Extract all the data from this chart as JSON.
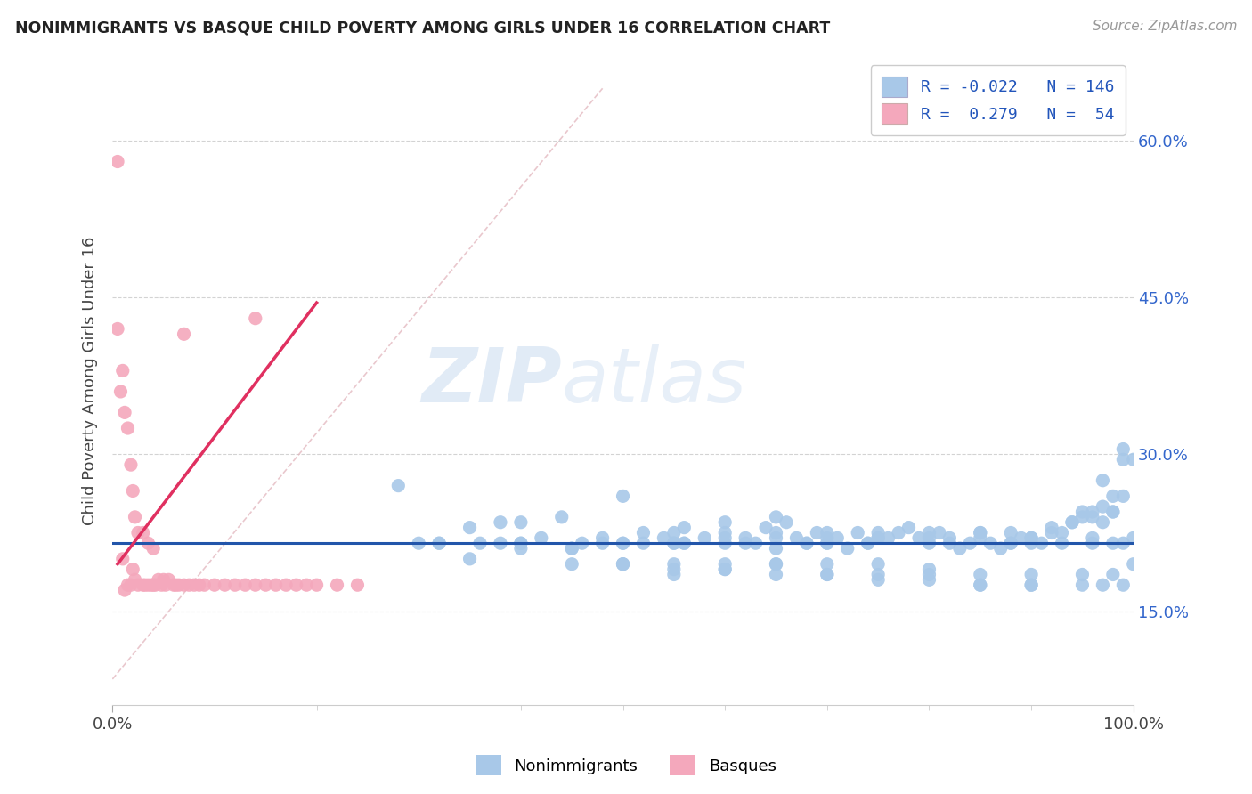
{
  "title": "NONIMMIGRANTS VS BASQUE CHILD POVERTY AMONG GIRLS UNDER 16 CORRELATION CHART",
  "source": "Source: ZipAtlas.com",
  "ylabel": "Child Poverty Among Girls Under 16",
  "watermark_zip": "ZIP",
  "watermark_atlas": "atlas",
  "legend_blue_label": "Nonimmigrants",
  "legend_pink_label": "Basques",
  "R_blue": -0.022,
  "N_blue": 146,
  "R_pink": 0.279,
  "N_pink": 54,
  "blue_dot_color": "#a8c8e8",
  "pink_dot_color": "#f4a8bc",
  "blue_line_color": "#2255aa",
  "pink_line_color": "#e03060",
  "diag_color": "#e0b0b8",
  "background_color": "#ffffff",
  "grid_color": "#c8c8c8",
  "y_ticks": [
    0.15,
    0.3,
    0.45,
    0.6
  ],
  "y_tick_labels": [
    "15.0%",
    "30.0%",
    "45.0%",
    "60.0%"
  ],
  "xlim": [
    0.0,
    1.0
  ],
  "ylim": [
    0.06,
    0.68
  ],
  "blue_scatter_x": [
    0.28,
    0.32,
    0.35,
    0.38,
    0.4,
    0.42,
    0.44,
    0.48,
    0.5,
    0.52,
    0.54,
    0.55,
    0.56,
    0.58,
    0.6,
    0.62,
    0.63,
    0.64,
    0.65,
    0.66,
    0.67,
    0.68,
    0.69,
    0.7,
    0.71,
    0.72,
    0.73,
    0.74,
    0.75,
    0.76,
    0.77,
    0.78,
    0.79,
    0.8,
    0.81,
    0.82,
    0.83,
    0.84,
    0.85,
    0.86,
    0.87,
    0.88,
    0.89,
    0.9,
    0.91,
    0.92,
    0.93,
    0.94,
    0.95,
    0.96,
    0.97,
    0.98,
    0.99,
    1.0,
    0.5,
    0.55,
    0.6,
    0.65,
    0.7,
    0.45,
    0.5,
    0.55,
    0.6,
    0.65,
    0.7,
    0.75,
    0.8,
    0.85,
    0.9,
    0.4,
    0.45,
    0.5,
    0.55,
    0.6,
    0.65,
    0.7,
    0.75,
    0.8,
    0.85,
    0.88,
    0.9,
    0.92,
    0.94,
    0.96,
    0.98,
    0.5,
    0.55,
    0.6,
    0.65,
    0.7,
    0.75,
    0.8,
    0.85,
    0.9,
    0.95,
    0.97,
    0.99,
    0.6,
    0.65,
    0.7,
    0.75,
    0.8,
    0.85,
    0.9,
    0.35,
    0.4,
    0.45,
    0.5,
    0.55,
    0.6,
    0.65,
    0.7,
    0.75,
    0.8,
    0.85,
    0.9,
    0.95,
    0.98,
    1.0,
    0.95,
    0.96,
    0.97,
    0.98,
    0.99,
    0.97,
    0.99,
    1.0,
    0.32,
    0.36,
    0.4,
    0.46,
    0.52,
    0.56,
    0.62,
    0.68,
    0.74,
    0.82,
    0.88,
    0.93,
    0.96,
    0.98,
    0.99,
    0.3,
    0.38,
    0.48,
    0.56
  ],
  "blue_scatter_y": [
    0.27,
    0.215,
    0.23,
    0.235,
    0.235,
    0.22,
    0.24,
    0.22,
    0.26,
    0.225,
    0.22,
    0.225,
    0.23,
    0.22,
    0.235,
    0.22,
    0.215,
    0.23,
    0.24,
    0.235,
    0.22,
    0.215,
    0.225,
    0.22,
    0.22,
    0.21,
    0.225,
    0.215,
    0.22,
    0.22,
    0.225,
    0.23,
    0.22,
    0.215,
    0.225,
    0.22,
    0.21,
    0.215,
    0.22,
    0.215,
    0.21,
    0.215,
    0.22,
    0.215,
    0.215,
    0.225,
    0.225,
    0.235,
    0.24,
    0.22,
    0.235,
    0.245,
    0.26,
    0.295,
    0.215,
    0.215,
    0.22,
    0.22,
    0.215,
    0.195,
    0.195,
    0.185,
    0.19,
    0.195,
    0.185,
    0.185,
    0.185,
    0.175,
    0.175,
    0.21,
    0.21,
    0.215,
    0.215,
    0.215,
    0.21,
    0.215,
    0.22,
    0.22,
    0.225,
    0.225,
    0.22,
    0.23,
    0.235,
    0.24,
    0.245,
    0.195,
    0.19,
    0.19,
    0.185,
    0.185,
    0.18,
    0.18,
    0.175,
    0.175,
    0.175,
    0.175,
    0.175,
    0.225,
    0.225,
    0.225,
    0.225,
    0.225,
    0.225,
    0.22,
    0.2,
    0.215,
    0.21,
    0.195,
    0.195,
    0.195,
    0.195,
    0.195,
    0.195,
    0.19,
    0.185,
    0.185,
    0.185,
    0.185,
    0.195,
    0.245,
    0.245,
    0.25,
    0.26,
    0.295,
    0.275,
    0.305,
    0.22,
    0.215,
    0.215,
    0.215,
    0.215,
    0.215,
    0.215,
    0.215,
    0.215,
    0.215,
    0.215,
    0.215,
    0.215,
    0.215,
    0.215,
    0.215,
    0.215,
    0.215,
    0.215,
    0.215
  ],
  "pink_scatter_x": [
    0.005,
    0.01,
    0.012,
    0.015,
    0.018,
    0.02,
    0.022,
    0.025,
    0.03,
    0.032,
    0.035,
    0.038,
    0.04,
    0.042,
    0.045,
    0.048,
    0.05,
    0.052,
    0.055,
    0.06,
    0.062,
    0.065,
    0.07,
    0.075,
    0.08,
    0.085,
    0.09,
    0.1,
    0.11,
    0.12,
    0.13,
    0.14,
    0.15,
    0.16,
    0.17,
    0.18,
    0.19,
    0.2,
    0.22,
    0.24,
    0.005,
    0.008,
    0.01,
    0.012,
    0.015,
    0.018,
    0.02,
    0.022,
    0.025,
    0.03,
    0.035,
    0.04,
    0.07,
    0.14
  ],
  "pink_scatter_y": [
    0.58,
    0.2,
    0.17,
    0.175,
    0.175,
    0.19,
    0.18,
    0.175,
    0.175,
    0.175,
    0.175,
    0.175,
    0.175,
    0.175,
    0.18,
    0.175,
    0.18,
    0.175,
    0.18,
    0.175,
    0.175,
    0.175,
    0.175,
    0.175,
    0.175,
    0.175,
    0.175,
    0.175,
    0.175,
    0.175,
    0.175,
    0.175,
    0.175,
    0.175,
    0.175,
    0.175,
    0.175,
    0.175,
    0.175,
    0.175,
    0.42,
    0.36,
    0.38,
    0.34,
    0.325,
    0.29,
    0.265,
    0.24,
    0.225,
    0.225,
    0.215,
    0.21,
    0.415,
    0.43
  ],
  "pink_line_x0": 0.005,
  "pink_line_x1": 0.2,
  "pink_line_y0": 0.195,
  "pink_line_y1": 0.445,
  "blue_line_y": 0.215
}
